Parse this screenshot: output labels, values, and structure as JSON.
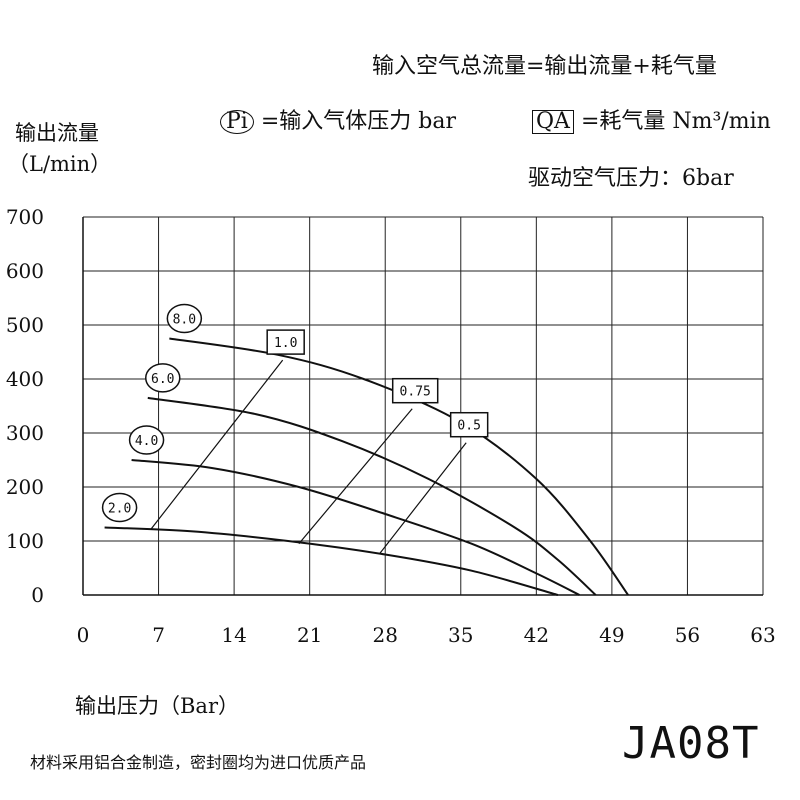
{
  "header": {
    "formula": "输入空气总流量=输出流量+耗气量",
    "pi_symbol": "Pi",
    "pi_text": "=输入气体压力 bar",
    "qa_symbol": "QA",
    "qa_text": "=耗气量 Nm³/min",
    "drive": "驱动空气压力：6bar"
  },
  "footer": {
    "note": "材料采用铝合金制造，密封圈均为进口优质产品",
    "model": "JA08T"
  },
  "chart_data": {
    "type": "line",
    "ylabel_line1": "输出流量",
    "ylabel_line2": "（L/min）",
    "xlabel": "输出压力（Bar）",
    "xlim": [
      0,
      63
    ],
    "ylim": [
      0,
      700
    ],
    "xticks": [
      0,
      7,
      14,
      21,
      28,
      35,
      42,
      49,
      56,
      63
    ],
    "yticks": [
      0,
      100,
      200,
      300,
      400,
      500,
      600,
      700
    ],
    "grid": true,
    "pi_series": [
      {
        "name": "8.0",
        "points": [
          [
            8,
            475
          ],
          [
            18,
            445
          ],
          [
            26,
            400
          ],
          [
            35,
            320
          ],
          [
            42,
            215
          ],
          [
            47,
            100
          ],
          [
            50.5,
            0
          ]
        ]
      },
      {
        "name": "6.0",
        "points": [
          [
            6,
            365
          ],
          [
            16,
            335
          ],
          [
            24,
            285
          ],
          [
            32,
            215
          ],
          [
            40,
            125
          ],
          [
            44,
            65
          ],
          [
            47.5,
            0
          ]
        ]
      },
      {
        "name": "4.0",
        "points": [
          [
            4.5,
            250
          ],
          [
            12,
            235
          ],
          [
            20,
            200
          ],
          [
            28,
            150
          ],
          [
            36,
            95
          ],
          [
            42,
            40
          ],
          [
            46,
            0
          ]
        ]
      },
      {
        "name": "2.0",
        "points": [
          [
            2,
            125
          ],
          [
            10,
            118
          ],
          [
            19,
            100
          ],
          [
            28,
            75
          ],
          [
            36,
            45
          ],
          [
            44,
            0
          ]
        ]
      }
    ],
    "qa_series": [
      {
        "name": "1.0",
        "points": [
          [
            6.3,
            122
          ],
          [
            18.5,
            435
          ]
        ]
      },
      {
        "name": "0.75",
        "points": [
          [
            20,
            95
          ],
          [
            30.5,
            345
          ]
        ]
      },
      {
        "name": "0.5",
        "points": [
          [
            27.5,
            77
          ],
          [
            35.5,
            282
          ]
        ]
      }
    ]
  }
}
